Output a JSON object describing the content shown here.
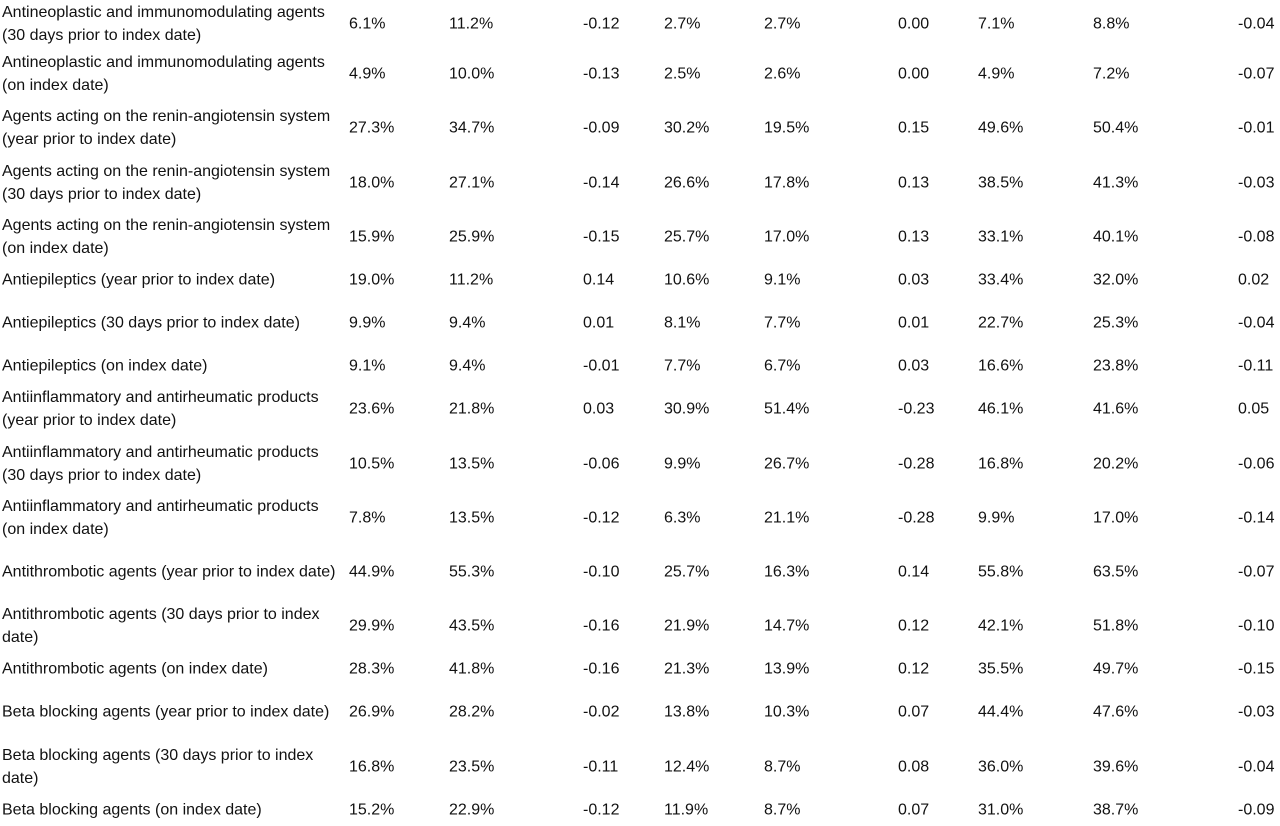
{
  "table": {
    "rows": [
      {
        "label": "Antineoplastic and immunomodulating agents (30 days prior to index date)",
        "cells": [
          "6.1%",
          "11.2%",
          "-0.12",
          "2.7%",
          "2.7%",
          "0.00",
          "7.1%",
          "8.8%",
          "-0.04"
        ]
      },
      {
        "label": "Antineoplastic and immunomodulating agents (on index date)",
        "cells": [
          "4.9%",
          "10.0%",
          "-0.13",
          "2.5%",
          "2.6%",
          "0.00",
          "4.9%",
          "7.2%",
          "-0.07"
        ]
      },
      {
        "label": "Agents acting on the renin-angiotensin system (year prior to index date)",
        "cells": [
          "27.3%",
          "34.7%",
          "-0.09",
          "30.2%",
          "19.5%",
          "0.15",
          "49.6%",
          "50.4%",
          "-0.01"
        ]
      },
      {
        "label": "Agents acting on the renin-angiotensin system (30 days prior to index date)",
        "cells": [
          "18.0%",
          "27.1%",
          "-0.14",
          "26.6%",
          "17.8%",
          "0.13",
          "38.5%",
          "41.3%",
          "-0.03"
        ]
      },
      {
        "label": "Agents acting on the renin-angiotensin system (on index date)",
        "cells": [
          "15.9%",
          "25.9%",
          "-0.15",
          "25.7%",
          "17.0%",
          "0.13",
          "33.1%",
          "40.1%",
          "-0.08"
        ]
      },
      {
        "label": "Antiepileptics (year prior to index date)",
        "cells": [
          "19.0%",
          "11.2%",
          "0.14",
          "10.6%",
          "9.1%",
          "0.03",
          "33.4%",
          "32.0%",
          "0.02"
        ]
      },
      {
        "label": "Antiepileptics (30 days prior to index date)",
        "cells": [
          "9.9%",
          "9.4%",
          "0.01",
          "8.1%",
          "7.7%",
          "0.01",
          "22.7%",
          "25.3%",
          "-0.04"
        ]
      },
      {
        "label": "Antiepileptics (on index date)",
        "cells": [
          "9.1%",
          "9.4%",
          "-0.01",
          "7.7%",
          "6.7%",
          "0.03",
          "16.6%",
          "23.8%",
          "-0.11"
        ]
      },
      {
        "label": "Antiinflammatory and antirheumatic products (year prior to index date)",
        "cells": [
          "23.6%",
          "21.8%",
          "0.03",
          "30.9%",
          "51.4%",
          "-0.23",
          "46.1%",
          "41.6%",
          "0.05"
        ]
      },
      {
        "label": "Antiinflammatory and antirheumatic products (30 days prior to index date)",
        "cells": [
          "10.5%",
          "13.5%",
          "-0.06",
          "9.9%",
          "26.7%",
          "-0.28",
          "16.8%",
          "20.2%",
          "-0.06"
        ]
      },
      {
        "label": "Antiinflammatory and antirheumatic products (on index date)",
        "cells": [
          "7.8%",
          "13.5%",
          "-0.12",
          "6.3%",
          "21.1%",
          "-0.28",
          "9.9%",
          "17.0%",
          "-0.14"
        ]
      },
      {
        "label": "Antithrombotic agents (year prior to index date)",
        "cells": [
          "44.9%",
          "55.3%",
          "-0.10",
          "25.7%",
          "16.3%",
          "0.14",
          "55.8%",
          "63.5%",
          "-0.07"
        ]
      },
      {
        "label": "Antithrombotic agents (30 days prior to index date)",
        "cells": [
          "29.9%",
          "43.5%",
          "-0.16",
          "21.9%",
          "14.7%",
          "0.12",
          "42.1%",
          "51.8%",
          "-0.10"
        ]
      },
      {
        "label": "Antithrombotic agents (on index date)",
        "cells": [
          "28.3%",
          "41.8%",
          "-0.16",
          "21.3%",
          "13.9%",
          "0.12",
          "35.5%",
          "49.7%",
          "-0.15"
        ]
      },
      {
        "label": "Beta blocking agents  (year prior to index date)",
        "cells": [
          "26.9%",
          "28.2%",
          "-0.02",
          "13.8%",
          "10.3%",
          "0.07",
          "44.4%",
          "47.6%",
          "-0.03"
        ]
      },
      {
        "label": "Beta blocking agents (30 days prior to index date)",
        "cells": [
          "16.8%",
          "23.5%",
          "-0.11",
          "12.4%",
          "8.7%",
          "0.08",
          "36.0%",
          "39.6%",
          "-0.04"
        ]
      },
      {
        "label": "Beta blocking agents (on index date)",
        "cells": [
          "15.2%",
          "22.9%",
          "-0.12",
          "11.9%",
          "8.7%",
          "0.07",
          "31.0%",
          "38.7%",
          "-0.09"
        ]
      }
    ]
  }
}
